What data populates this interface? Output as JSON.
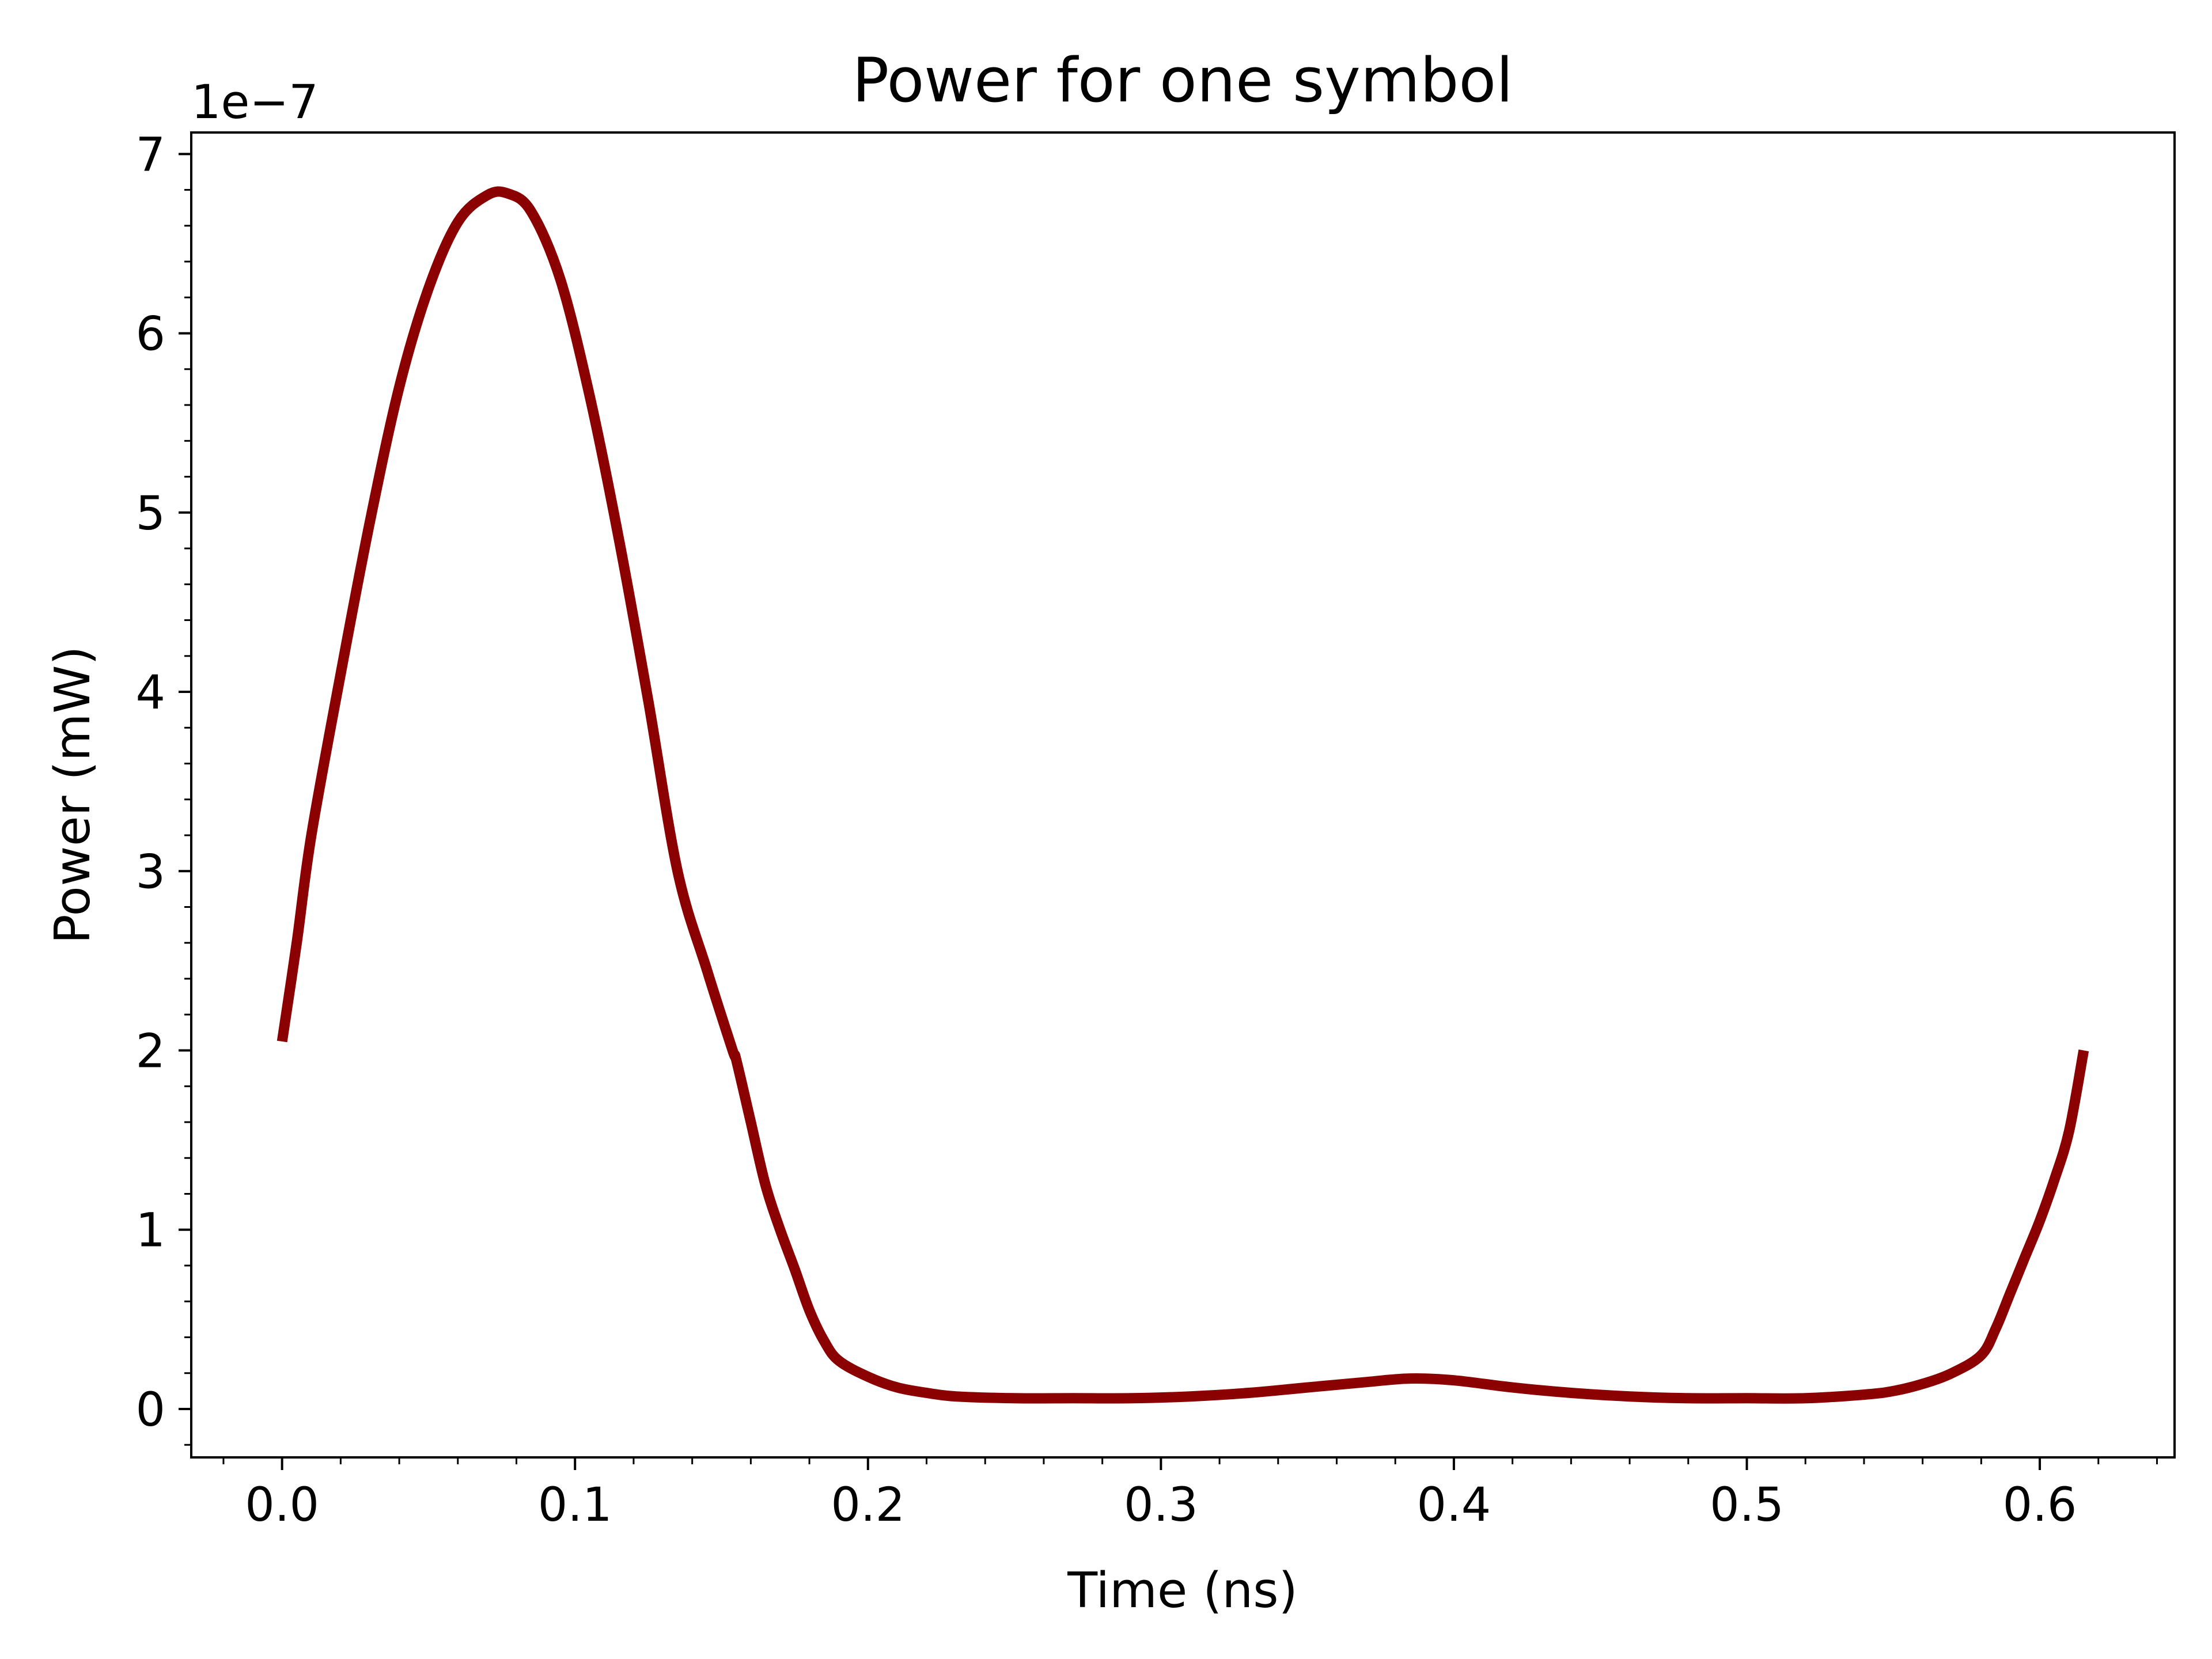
{
  "chart_data": {
    "type": "line",
    "title": "Power for one symbol",
    "xlabel": "Time (ns)",
    "ylabel": "Power (mW)",
    "y_scale_text": "1e−7",
    "y_multiplier": 1e-07,
    "xlim": [
      -0.031,
      0.646
    ],
    "ylim": [
      -0.27,
      7.12
    ],
    "x_ticks": [
      0.0,
      0.1,
      0.2,
      0.3,
      0.4,
      0.5,
      0.6
    ],
    "x_tick_labels": [
      "0.0",
      "0.1",
      "0.2",
      "0.3",
      "0.4",
      "0.5",
      "0.6"
    ],
    "x_minor_step": 0.02,
    "y_ticks": [
      0,
      1,
      2,
      3,
      4,
      5,
      6,
      7
    ],
    "y_tick_labels": [
      "0",
      "1",
      "2",
      "3",
      "4",
      "5",
      "6",
      "7"
    ],
    "y_minor_step": 0.2,
    "grid": false,
    "line_color": "#8b0000",
    "series": [
      {
        "x": [
          0.0,
          0.005,
          0.01,
          0.02,
          0.03,
          0.04,
          0.05,
          0.06,
          0.07,
          0.077,
          0.085,
          0.095,
          0.105,
          0.115,
          0.125,
          0.135,
          0.145,
          0.1538,
          0.155,
          0.16,
          0.165,
          0.17,
          0.175,
          0.18,
          0.185,
          0.19,
          0.2,
          0.21,
          0.22,
          0.23,
          0.25,
          0.27,
          0.29,
          0.31,
          0.33,
          0.35,
          0.37,
          0.385,
          0.4,
          0.42,
          0.44,
          0.46,
          0.48,
          0.5,
          0.52,
          0.54,
          0.55,
          0.56,
          0.57,
          0.58,
          0.585,
          0.59,
          0.595,
          0.6,
          0.605,
          0.61,
          0.615
        ],
        "y": [
          2.05,
          2.6,
          3.2,
          4.1,
          4.95,
          5.7,
          6.25,
          6.62,
          6.77,
          6.78,
          6.68,
          6.3,
          5.65,
          4.85,
          3.95,
          3.0,
          2.45,
          2.0,
          1.95,
          1.6,
          1.25,
          1.0,
          0.78,
          0.55,
          0.38,
          0.27,
          0.18,
          0.12,
          0.09,
          0.07,
          0.06,
          0.06,
          0.06,
          0.07,
          0.09,
          0.12,
          0.15,
          0.17,
          0.16,
          0.12,
          0.09,
          0.07,
          0.06,
          0.06,
          0.06,
          0.08,
          0.1,
          0.14,
          0.2,
          0.3,
          0.45,
          0.65,
          0.85,
          1.05,
          1.28,
          1.55,
          2.0
        ]
      }
    ]
  }
}
